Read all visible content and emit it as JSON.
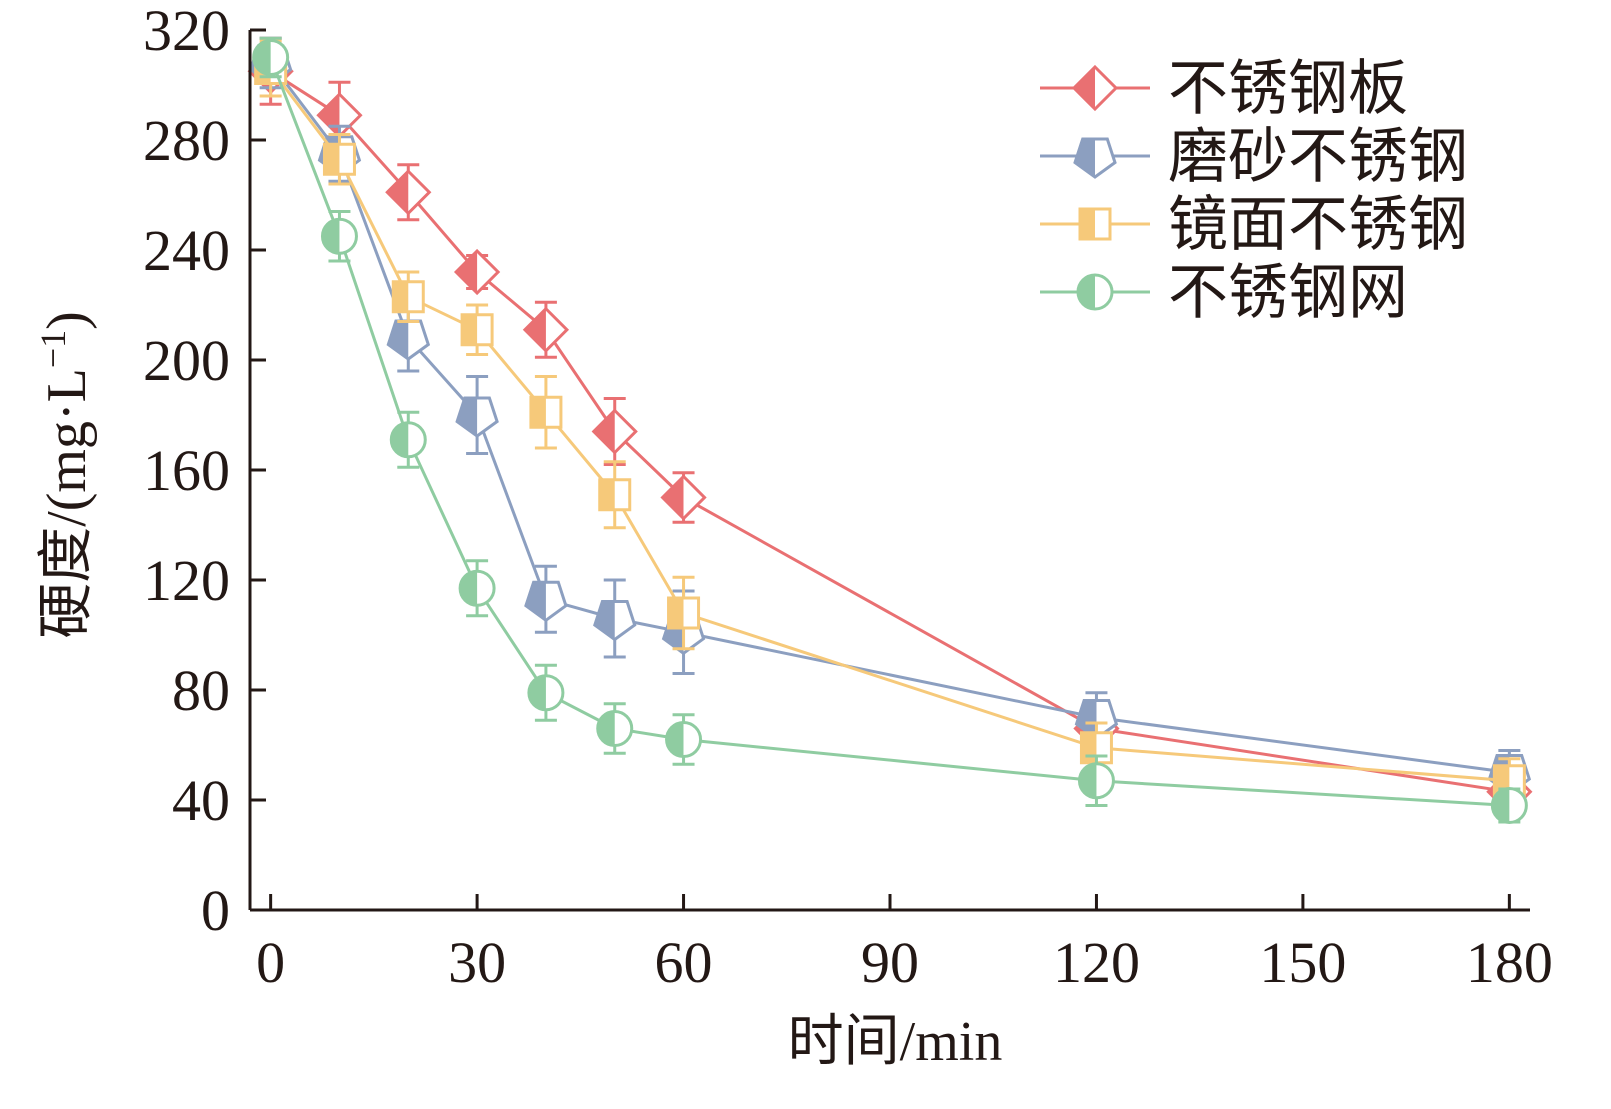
{
  "chart_data": {
    "type": "line",
    "title": "",
    "xlabel": "时间/min",
    "ylabel": "硬度/(mg·L⁻¹)",
    "ylabel_main": "硬度/(mg·L",
    "ylabel_sup": "−1",
    "ylabel_close": ")",
    "xlim": [
      -3,
      183
    ],
    "ylim": [
      0,
      320
    ],
    "xticks": [
      0,
      30,
      60,
      90,
      120,
      150,
      180
    ],
    "yticks": [
      0,
      40,
      80,
      120,
      160,
      200,
      240,
      280,
      320
    ],
    "x": [
      0,
      10,
      20,
      30,
      40,
      50,
      60,
      120,
      180
    ],
    "series": [
      {
        "name": "不锈钢板",
        "color": "#e97072",
        "marker": "diamond",
        "values": [
          305,
          289,
          261,
          232,
          211,
          174,
          150,
          66,
          43
        ],
        "errors": [
          12,
          12,
          10,
          6,
          10,
          12,
          9,
          7,
          6
        ]
      },
      {
        "name": "磨砂不锈钢",
        "color": "#8c9fc0",
        "marker": "pentagon",
        "values": [
          308,
          275,
          208,
          180,
          113,
          106,
          101,
          70,
          50
        ],
        "errors": [
          9,
          10,
          12,
          14,
          12,
          14,
          15,
          9,
          8
        ]
      },
      {
        "name": "镜面不锈钢",
        "color": "#f6c97a",
        "marker": "square",
        "values": [
          306,
          273,
          223,
          211,
          181,
          151,
          108,
          59,
          47
        ],
        "errors": [
          10,
          9,
          9,
          9,
          13,
          12,
          13,
          9,
          8
        ]
      },
      {
        "name": "不锈钢网",
        "color": "#8fcca1",
        "marker": "circle",
        "values": [
          310,
          245,
          171,
          117,
          79,
          66,
          62,
          47,
          38
        ],
        "errors": [
          7,
          9,
          10,
          10,
          10,
          9,
          9,
          9,
          6
        ]
      }
    ],
    "legend_position": "top-right",
    "axis_color": "#231815"
  }
}
